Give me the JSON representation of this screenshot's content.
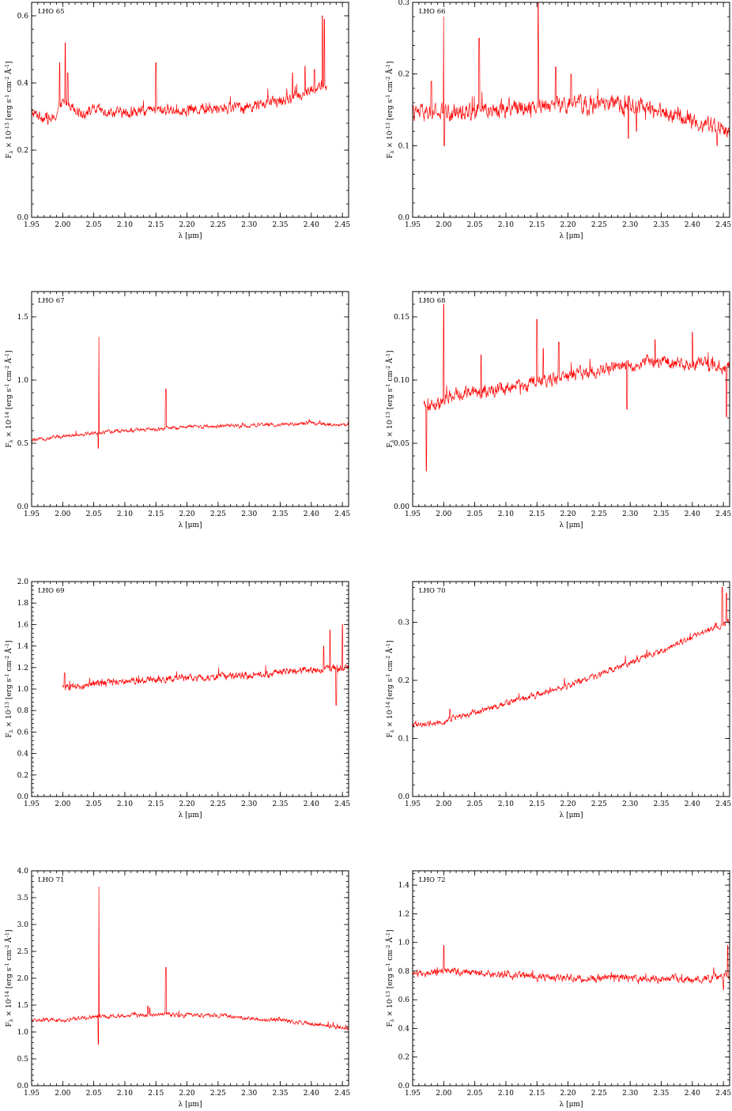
{
  "style": {
    "line_color": "#ff0000",
    "axis_color": "#000000"
  },
  "chart_data": [
    {
      "type": "line",
      "title": "LHO 65",
      "xlabel": "λ [μm]",
      "ylabel": "F_λ × 10^-13 [erg s^-1 cm^-2 Å^-1]",
      "xlim": [
        1.95,
        2.46
      ],
      "ylim": [
        0,
        0.64
      ],
      "xticks": [
        "1.95",
        "2.00",
        "2.05",
        "2.10",
        "2.15",
        "2.20",
        "2.25",
        "2.30",
        "2.35",
        "2.40",
        "2.45"
      ],
      "yticks": [
        "0.0",
        "0.2",
        "0.4",
        "0.6"
      ],
      "grid": false,
      "series": [
        {
          "x_range": [
            1.95,
            2.425
          ],
          "continuum": [
            [
              1.95,
              0.31
            ],
            [
              1.985,
              0.29
            ],
            [
              2.0,
              0.34
            ],
            [
              2.01,
              0.34
            ],
            [
              2.03,
              0.31
            ],
            [
              2.05,
              0.32
            ],
            [
              2.1,
              0.31
            ],
            [
              2.15,
              0.32
            ],
            [
              2.2,
              0.32
            ],
            [
              2.3,
              0.33
            ],
            [
              2.36,
              0.35
            ],
            [
              2.42,
              0.39
            ]
          ],
          "noise": 0.012,
          "peaks": [
            [
              1.995,
              0.46
            ],
            [
              2.004,
              0.52
            ],
            [
              2.008,
              0.43
            ],
            [
              2.15,
              0.46
            ],
            [
              2.37,
              0.43
            ],
            [
              2.39,
              0.45
            ],
            [
              2.405,
              0.44
            ],
            [
              2.418,
              0.6
            ],
            [
              2.421,
              0.59
            ]
          ]
        }
      ]
    },
    {
      "type": "line",
      "title": "LHO 66",
      "xlabel": "λ [μm]",
      "ylabel": "F_λ × 10^-13 [erg s^-1 cm^-2 Å^-1]",
      "xlim": [
        1.95,
        2.46
      ],
      "ylim": [
        0,
        0.3
      ],
      "xticks": [
        "1.95",
        "2.00",
        "2.05",
        "2.10",
        "2.15",
        "2.20",
        "2.25",
        "2.30",
        "2.35",
        "2.40",
        "2.45"
      ],
      "yticks": [
        "0.0",
        "0.1",
        "0.2",
        "0.3"
      ],
      "grid": false,
      "series": [
        {
          "x_range": [
            1.95,
            2.46
          ],
          "continuum": [
            [
              1.95,
              0.145
            ],
            [
              2.0,
              0.145
            ],
            [
              2.05,
              0.15
            ],
            [
              2.1,
              0.152
            ],
            [
              2.15,
              0.157
            ],
            [
              2.2,
              0.157
            ],
            [
              2.25,
              0.157
            ],
            [
              2.3,
              0.155
            ],
            [
              2.35,
              0.148
            ],
            [
              2.4,
              0.135
            ],
            [
              2.46,
              0.12
            ]
          ],
          "noise": 0.009,
          "peaks": [
            [
              2.0,
              0.28
            ],
            [
              2.001,
              0.1
            ],
            [
              2.057,
              0.25
            ],
            [
              2.152,
              0.3
            ],
            [
              1.98,
              0.19
            ],
            [
              2.18,
              0.21
            ],
            [
              2.205,
              0.2
            ],
            [
              2.297,
              0.11
            ],
            [
              2.31,
              0.12
            ],
            [
              2.44,
              0.1
            ]
          ]
        }
      ]
    },
    {
      "type": "line",
      "title": "LHO 67",
      "xlabel": "λ [μm]",
      "ylabel": "F_λ × 10^-14 [erg s^-1 cm^-2 Å^-1]",
      "xlim": [
        1.95,
        2.46
      ],
      "ylim": [
        0,
        1.7
      ],
      "xticks": [
        "1.95",
        "2.00",
        "2.05",
        "2.10",
        "2.15",
        "2.20",
        "2.25",
        "2.30",
        "2.35",
        "2.40",
        "2.45"
      ],
      "yticks": [
        "0.0",
        "0.5",
        "1.0",
        "1.5"
      ],
      "grid": false,
      "series": [
        {
          "x_range": [
            1.95,
            2.46
          ],
          "continuum": [
            [
              1.95,
              0.52
            ],
            [
              2.0,
              0.56
            ],
            [
              2.05,
              0.58
            ],
            [
              2.1,
              0.6
            ],
            [
              2.15,
              0.61
            ],
            [
              2.2,
              0.63
            ],
            [
              2.3,
              0.64
            ],
            [
              2.4,
              0.66
            ],
            [
              2.46,
              0.64
            ]
          ],
          "noise": 0.012,
          "peaks": [
            [
              2.058,
              1.34
            ],
            [
              2.0575,
              0.46
            ],
            [
              2.166,
              0.93
            ],
            [
              2.11,
              0.62
            ]
          ]
        }
      ]
    },
    {
      "type": "line",
      "title": "LHO 68",
      "xlabel": "λ [μm]",
      "ylabel": "F_λ × 10^-13 [erg s^-1 cm^-2 Å^-1]",
      "xlim": [
        1.95,
        2.46
      ],
      "ylim": [
        0,
        0.17
      ],
      "xticks": [
        "1.95",
        "2.00",
        "2.05",
        "2.10",
        "2.15",
        "2.20",
        "2.25",
        "2.30",
        "2.35",
        "2.40",
        "2.45"
      ],
      "yticks": [
        "0.00",
        "0.05",
        "0.10",
        "0.15"
      ],
      "grid": false,
      "series": [
        {
          "x_range": [
            1.968,
            2.46
          ],
          "continuum": [
            [
              1.968,
              0.078
            ],
            [
              2.0,
              0.082
            ],
            [
              2.01,
              0.088
            ],
            [
              2.1,
              0.093
            ],
            [
              2.2,
              0.103
            ],
            [
              2.3,
              0.112
            ],
            [
              2.35,
              0.115
            ],
            [
              2.46,
              0.11
            ]
          ],
          "noise": 0.004,
          "peaks": [
            [
              1.972,
              0.028
            ],
            [
              2.0,
              0.16
            ],
            [
              2.15,
              0.148
            ],
            [
              2.16,
              0.125
            ],
            [
              2.185,
              0.13
            ],
            [
              2.06,
              0.12
            ],
            [
              2.4,
              0.138
            ],
            [
              2.295,
              0.077
            ],
            [
              2.455,
              0.071
            ],
            [
              2.34,
              0.132
            ]
          ]
        }
      ]
    },
    {
      "type": "line",
      "title": "LHO 69",
      "xlabel": "λ [μm]",
      "ylabel": "F_λ × 10^-13 [erg s^-1 cm^-2 Å^-1]",
      "xlim": [
        1.95,
        2.46
      ],
      "ylim": [
        0,
        2.0
      ],
      "xticks": [
        "1.95",
        "2.00",
        "2.05",
        "2.10",
        "2.15",
        "2.20",
        "2.25",
        "2.30",
        "2.35",
        "2.40",
        "2.45"
      ],
      "yticks": [
        "0.0",
        "0.2",
        "0.4",
        "0.6",
        "0.8",
        "1.0",
        "1.2",
        "1.4",
        "1.6",
        "1.8",
        "2.0"
      ],
      "grid": false,
      "series": [
        {
          "x_range": [
            2.0,
            2.46
          ],
          "continuum": [
            [
              2.0,
              1.02
            ],
            [
              2.02,
              1.01
            ],
            [
              2.05,
              1.05
            ],
            [
              2.1,
              1.08
            ],
            [
              2.2,
              1.1
            ],
            [
              2.3,
              1.13
            ],
            [
              2.35,
              1.15
            ],
            [
              2.4,
              1.18
            ],
            [
              2.46,
              1.2
            ]
          ],
          "noise": 0.025,
          "peaks": [
            [
              2.003,
              1.15
            ],
            [
              2.45,
              1.6
            ],
            [
              2.43,
              1.55
            ],
            [
              2.44,
              0.85
            ],
            [
              2.42,
              1.4
            ]
          ]
        }
      ]
    },
    {
      "type": "line",
      "title": "LHO 70",
      "xlabel": "λ [μm]",
      "ylabel": "F_λ × 10^-14 [erg s^-1 cm^-2 Å^-1]",
      "xlim": [
        1.95,
        2.46
      ],
      "ylim": [
        0,
        0.37
      ],
      "xticks": [
        "1.95",
        "2.00",
        "2.05",
        "2.10",
        "2.15",
        "2.20",
        "2.25",
        "2.30",
        "2.35",
        "2.40",
        "2.45"
      ],
      "yticks": [
        "0.0",
        "0.1",
        "0.2",
        "0.3"
      ],
      "grid": false,
      "series": [
        {
          "x_range": [
            1.95,
            2.46
          ],
          "continuum": [
            [
              1.95,
              0.122
            ],
            [
              2.0,
              0.13
            ],
            [
              2.05,
              0.145
            ],
            [
              2.1,
              0.16
            ],
            [
              2.15,
              0.175
            ],
            [
              2.2,
              0.19
            ],
            [
              2.25,
              0.21
            ],
            [
              2.3,
              0.23
            ],
            [
              2.35,
              0.25
            ],
            [
              2.4,
              0.275
            ],
            [
              2.46,
              0.3
            ]
          ],
          "noise": 0.004,
          "peaks": [
            [
              2.01,
              0.15
            ],
            [
              2.448,
              0.36
            ],
            [
              2.455,
              0.35
            ]
          ]
        }
      ]
    },
    {
      "type": "line",
      "title": "LHO 71",
      "xlabel": "λ [μm]",
      "ylabel": "F_λ × 10^-14 [erg s^-1 cm^-2 Å^-1]",
      "xlim": [
        1.95,
        2.46
      ],
      "ylim": [
        0,
        4.0
      ],
      "xticks": [
        "1.95",
        "2.00",
        "2.05",
        "2.10",
        "2.15",
        "2.20",
        "2.25",
        "2.30",
        "2.35",
        "2.40",
        "2.45"
      ],
      "yticks": [
        "0.0",
        "0.5",
        "1.0",
        "1.5",
        "2.0",
        "2.5",
        "3.0",
        "3.5",
        "4.0"
      ],
      "grid": false,
      "series": [
        {
          "x_range": [
            1.95,
            2.46
          ],
          "continuum": [
            [
              1.95,
              1.22
            ],
            [
              2.0,
              1.22
            ],
            [
              2.05,
              1.28
            ],
            [
              2.1,
              1.3
            ],
            [
              2.15,
              1.33
            ],
            [
              2.2,
              1.32
            ],
            [
              2.25,
              1.3
            ],
            [
              2.27,
              1.3
            ],
            [
              2.3,
              1.25
            ],
            [
              2.35,
              1.22
            ],
            [
              2.4,
              1.15
            ],
            [
              2.46,
              1.05
            ]
          ],
          "noise": 0.03,
          "peaks": [
            [
              2.058,
              3.7
            ],
            [
              2.0575,
              0.77
            ],
            [
              2.166,
              2.2
            ],
            [
              2.137,
              1.48
            ],
            [
              2.14,
              1.45
            ]
          ]
        }
      ]
    },
    {
      "type": "line",
      "title": "LHO 72",
      "xlabel": "λ [μm]",
      "ylabel": "F_λ × 10^-13 [erg s^-1 cm^-2 Å^-1]",
      "xlim": [
        1.95,
        2.46
      ],
      "ylim": [
        0,
        1.5
      ],
      "xticks": [
        "1.95",
        "2.00",
        "2.05",
        "2.10",
        "2.15",
        "2.20",
        "2.25",
        "2.30",
        "2.35",
        "2.40",
        "2.45"
      ],
      "yticks": [
        "0.0",
        "0.2",
        "0.4",
        "0.6",
        "0.8",
        "1.0",
        "1.2",
        "1.4"
      ],
      "grid": false,
      "series": [
        {
          "x_range": [
            1.95,
            2.46
          ],
          "continuum": [
            [
              1.95,
              0.77
            ],
            [
              2.0,
              0.8
            ],
            [
              2.05,
              0.79
            ],
            [
              2.1,
              0.78
            ],
            [
              2.15,
              0.76
            ],
            [
              2.2,
              0.75
            ],
            [
              2.3,
              0.75
            ],
            [
              2.4,
              0.74
            ],
            [
              2.46,
              0.76
            ]
          ],
          "noise": 0.02,
          "peaks": [
            [
              2.0,
              0.98
            ],
            [
              2.457,
              0.98
            ],
            [
              2.45,
              0.67
            ]
          ]
        }
      ]
    }
  ]
}
